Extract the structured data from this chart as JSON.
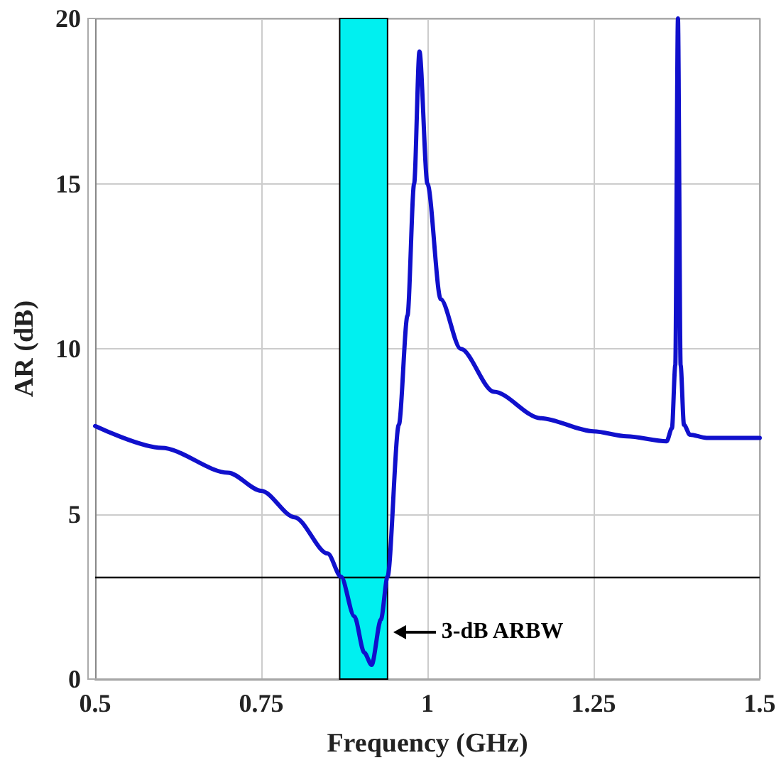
{
  "chart_data": {
    "type": "line",
    "xlabel": "Frequency (GHz)",
    "ylabel": "AR (dB)",
    "x": [
      0.5,
      0.6,
      0.7,
      0.75,
      0.8,
      0.85,
      0.87,
      0.89,
      0.905,
      0.916,
      0.93,
      0.94,
      0.957,
      0.97,
      0.98,
      0.988,
      1.0,
      1.02,
      1.05,
      1.1,
      1.17,
      1.25,
      1.3,
      1.36,
      1.368,
      1.373,
      1.377,
      1.381,
      1.386,
      1.395,
      1.42,
      1.5
    ],
    "series": [
      {
        "color": "#1010cc",
        "values": [
          7.66,
          7.0,
          6.25,
          5.7,
          4.9,
          3.8,
          3.1,
          1.9,
          0.8,
          0.43,
          1.8,
          3.1,
          7.7,
          11,
          15,
          19,
          15,
          11.5,
          10,
          8.7,
          7.9,
          7.5,
          7.35,
          7.2,
          7.6,
          9.5,
          20,
          9.5,
          7.7,
          7.4,
          7.3,
          7.3
        ]
      }
    ],
    "xlim": [
      0.5,
      1.5
    ],
    "xticks": [
      0.5,
      0.75,
      1,
      1.25,
      1.5
    ],
    "ylim": [
      0,
      20
    ],
    "yticks": [
      0,
      5,
      10,
      15,
      20
    ],
    "grid": true,
    "marker": "none",
    "line_style": "solid",
    "ref_lines": [
      {
        "axis": "y",
        "value": 3.1,
        "color": "#000000",
        "line_style": "solid"
      }
    ],
    "bands": [
      {
        "axis": "x",
        "from": 0.868,
        "to": 0.94,
        "color": "#00f0f0"
      }
    ],
    "annotations": [
      {
        "text": "3-dB ARBW",
        "x": 0.94,
        "y": 1.4
      }
    ]
  }
}
